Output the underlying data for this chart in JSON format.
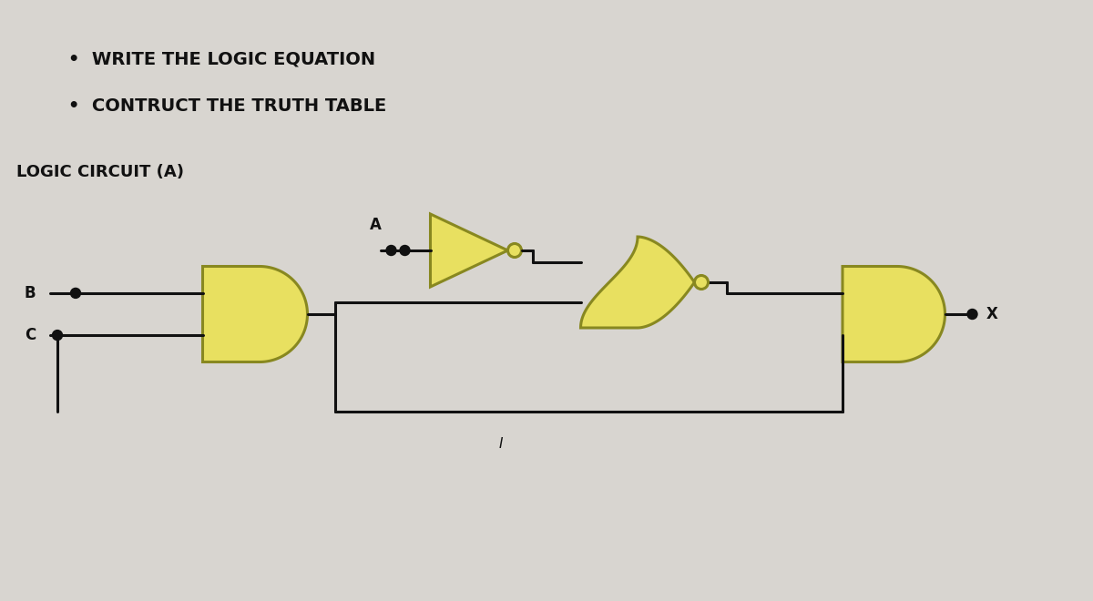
{
  "bg_color": "#d8d5d0",
  "gate_fill": "#e8e060",
  "gate_edge": "#888820",
  "gate_shadow": "#b8b040",
  "line_color": "#111111",
  "dot_color": "#111111",
  "text_color": "#111111",
  "bullet_texts": [
    "WRITE THE LOGIC EQUATION",
    "CONTRUCT THE TRUTH TABLE"
  ],
  "subtitle": "LOGIC CIRCUIT (A)",
  "label_A": "A",
  "label_B": "B",
  "label_C": "C",
  "label_X": "X",
  "label_I": "I",
  "font_size_bullet": 14,
  "font_size_subtitle": 13,
  "font_size_label": 12,
  "lw": 2.2,
  "dot_r": 0.055,
  "bubble_r": 0.075
}
